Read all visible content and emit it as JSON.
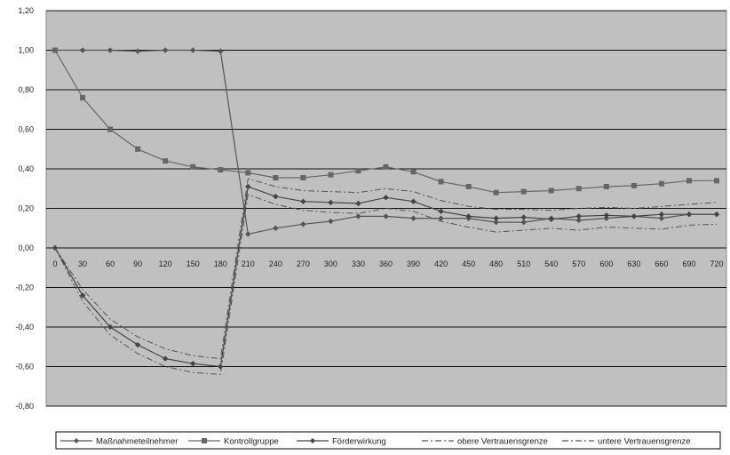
{
  "chart_data": {
    "type": "line",
    "x": [
      0,
      30,
      60,
      90,
      120,
      150,
      180,
      210,
      240,
      270,
      300,
      330,
      360,
      390,
      420,
      450,
      480,
      510,
      540,
      570,
      600,
      630,
      660,
      690,
      720
    ],
    "x_tick_labels": [
      "0",
      "30",
      "60",
      "90",
      "120",
      "150",
      "180",
      "210",
      "240",
      "270",
      "300",
      "330",
      "360",
      "390",
      "420",
      "450",
      "480",
      "510",
      "540",
      "570",
      "600",
      "630",
      "660",
      "690",
      "720"
    ],
    "y_tick_labels": [
      "1,20",
      "1,00",
      "0,80",
      "0,60",
      "0,40",
      "0,20",
      "0,00",
      "-0,20",
      "-0,40",
      "-0,60",
      "-0,80"
    ],
    "ylim": [
      -0.8,
      1.2
    ],
    "y_step": 0.2,
    "grid": "horizontal",
    "legend_position": "bottom",
    "plot_background": "#c0c0c0",
    "series": [
      {
        "name": "Maßnahmeteilnehmer",
        "color": "#555555",
        "style": "solid",
        "marker": "diamond",
        "values": [
          1.0,
          1.0,
          1.0,
          0.995,
          1.0,
          1.0,
          0.995,
          0.07,
          0.1,
          0.12,
          0.135,
          0.16,
          0.16,
          0.15,
          0.15,
          0.15,
          0.13,
          0.13,
          0.15,
          0.14,
          0.15,
          0.16,
          0.15,
          0.17,
          0.17
        ]
      },
      {
        "name": "Kontrollgruppe",
        "color": "#666666",
        "style": "solid",
        "marker": "square",
        "values": [
          1.0,
          0.76,
          0.6,
          0.5,
          0.44,
          0.41,
          0.395,
          0.38,
          0.355,
          0.355,
          0.37,
          0.39,
          0.41,
          0.385,
          0.335,
          0.31,
          0.28,
          0.285,
          0.29,
          0.3,
          0.31,
          0.315,
          0.325,
          0.34,
          0.34
        ]
      },
      {
        "name": "Förderwirkung",
        "color": "#444444",
        "style": "solid",
        "marker": "diamond",
        "values": [
          0.0,
          -0.24,
          -0.4,
          -0.49,
          -0.56,
          -0.585,
          -0.6,
          0.31,
          0.26,
          0.235,
          0.23,
          0.225,
          0.255,
          0.235,
          0.185,
          0.16,
          0.15,
          0.155,
          0.145,
          0.16,
          0.165,
          0.16,
          0.17,
          0.17,
          0.17
        ]
      },
      {
        "name": "obere Vertrauensgrenze",
        "color": "#555555",
        "style": "dashdot",
        "marker": "none",
        "values": [
          0.0,
          -0.21,
          -0.36,
          -0.45,
          -0.51,
          -0.545,
          -0.56,
          0.35,
          0.31,
          0.29,
          0.285,
          0.28,
          0.3,
          0.285,
          0.24,
          0.21,
          0.195,
          0.195,
          0.19,
          0.2,
          0.205,
          0.2,
          0.21,
          0.22,
          0.23
        ]
      },
      {
        "name": "untere Vertrauensgrenze",
        "color": "#555555",
        "style": "dashdot",
        "marker": "none",
        "values": [
          0.0,
          -0.27,
          -0.44,
          -0.535,
          -0.6,
          -0.63,
          -0.64,
          0.27,
          0.22,
          0.19,
          0.18,
          0.175,
          0.2,
          0.185,
          0.135,
          0.105,
          0.08,
          0.09,
          0.1,
          0.09,
          0.105,
          0.1,
          0.095,
          0.115,
          0.12
        ]
      }
    ]
  }
}
